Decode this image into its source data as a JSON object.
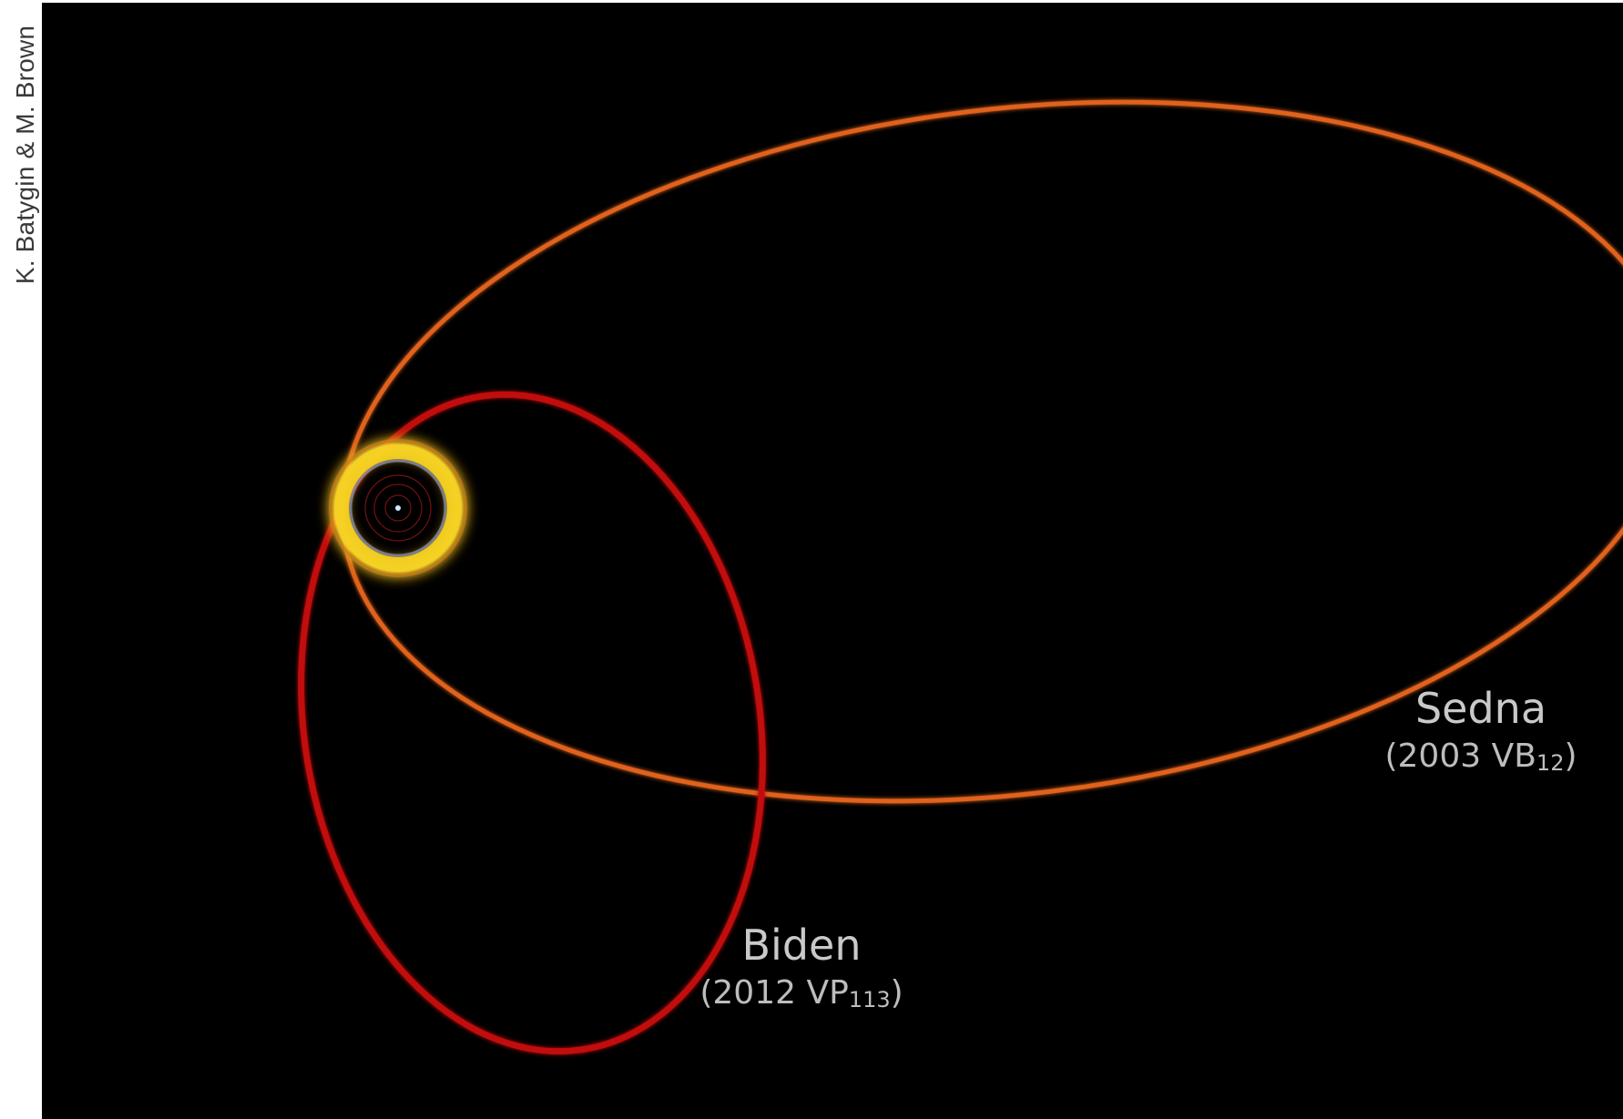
{
  "credit": "K. Batygin & M. Brown",
  "objects": [
    {
      "name": "Sedna",
      "designation_main": "(2003 VB",
      "designation_sub": "12",
      "designation_end": ")",
      "color": "#e0621c"
    },
    {
      "name": "Biden",
      "designation_main": "(2012 VP",
      "designation_sub": "113",
      "designation_end": ")",
      "color": "#c0100f"
    }
  ],
  "colors": {
    "background": "#000000",
    "kuiper_belt": "#f7d320",
    "sun": "#cfe8ff",
    "label": "#c9c9c9"
  }
}
